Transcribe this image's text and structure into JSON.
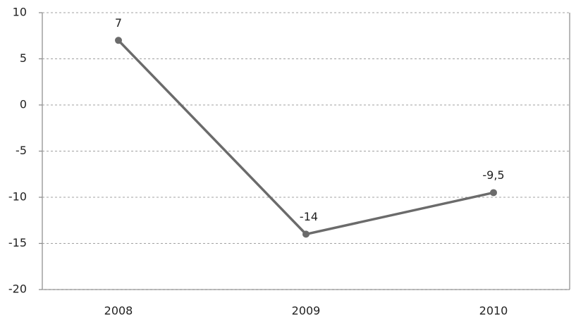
{
  "chart_data": {
    "type": "line",
    "categories": [
      "2008",
      "2009",
      "2010"
    ],
    "series": [
      {
        "name": null,
        "color": "#6b6b6b",
        "values": [
          7,
          -14,
          -9.5
        ],
        "value_labels": [
          "7",
          "-14",
          "-9,5"
        ]
      }
    ],
    "ylim": [
      -20,
      10
    ],
    "yticks": [
      -20,
      -15,
      -10,
      -5,
      0,
      5,
      10
    ],
    "grid": true
  }
}
